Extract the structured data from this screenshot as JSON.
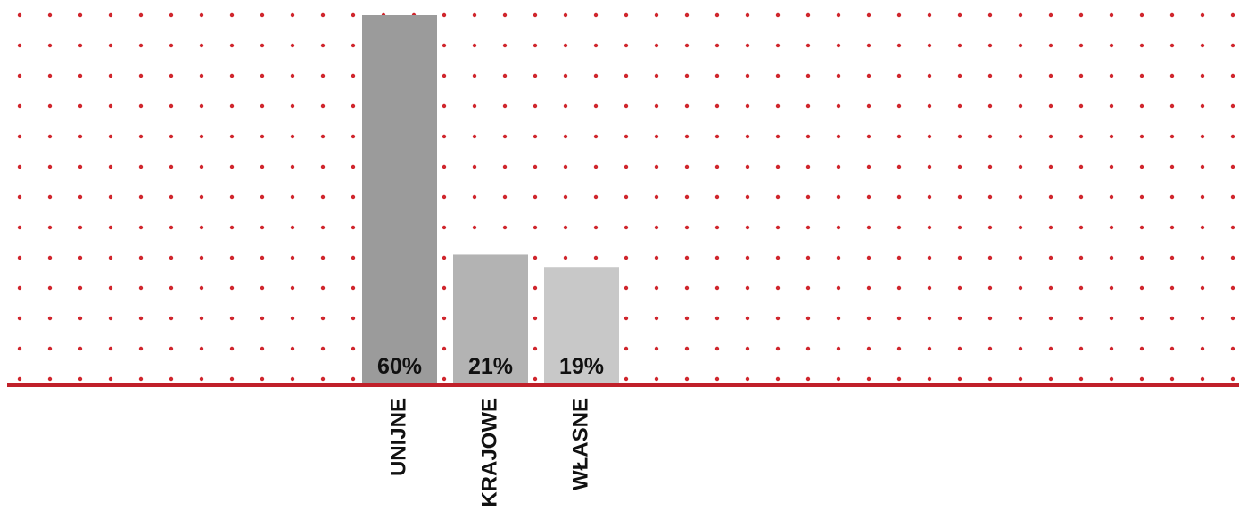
{
  "chart_data": {
    "type": "bar",
    "title": "",
    "xlabel": "",
    "ylabel": "",
    "categories": [
      "UNIJNE",
      "KRAJOWE",
      "WŁASNE"
    ],
    "values": [
      60,
      21,
      19
    ],
    "value_labels": [
      "60%",
      "21%",
      "19%"
    ],
    "ylim": [
      0,
      60
    ],
    "grid": "dotted",
    "legend": "none",
    "colors": {
      "bars": [
        "#9b9b9b",
        "#b3b3b3",
        "#c8c8c8"
      ],
      "grid_dots": "#d0262d",
      "baseline": "#c0202a",
      "label_text": "#111111"
    }
  }
}
